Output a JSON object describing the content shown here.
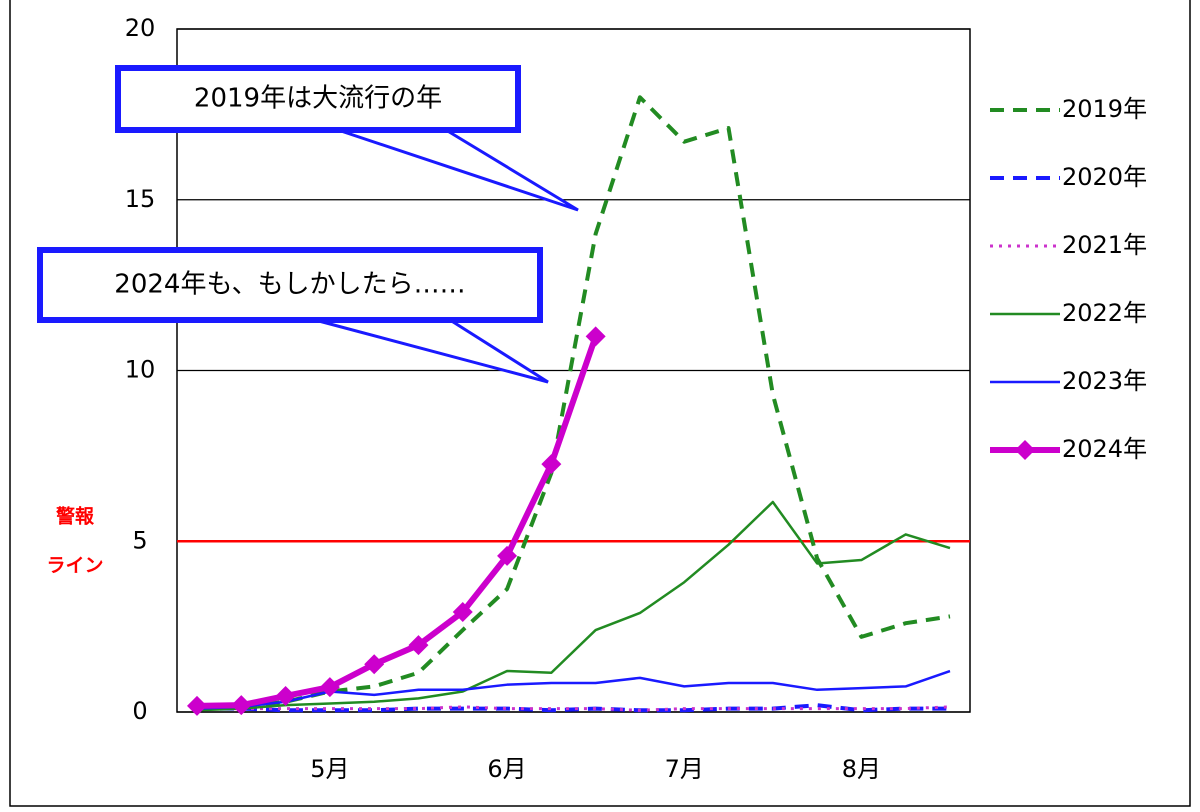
{
  "chart_data": {
    "type": "line",
    "categories": [
      null,
      null,
      null,
      "5月",
      null,
      null,
      null,
      "6月",
      null,
      null,
      null,
      "7月",
      null,
      null,
      null,
      "8月",
      null,
      null
    ],
    "series": [
      {
        "name": "2019年",
        "color": "#228b22",
        "dash": "dashed",
        "width": 4,
        "values": [
          0.1,
          0.15,
          0.3,
          0.6,
          0.75,
          1.15,
          2.4,
          3.6,
          7.0,
          14.0,
          18.0,
          16.7,
          17.1,
          9.3,
          4.5,
          2.2,
          2.6,
          2.8
        ]
      },
      {
        "name": "2020年",
        "color": "#1a1aff",
        "dash": "dashed",
        "width": 4,
        "values": [
          0.1,
          0.1,
          0.05,
          0.05,
          0.05,
          0.1,
          0.1,
          0.1,
          0.05,
          0.1,
          0.05,
          0.05,
          0.1,
          0.1,
          0.2,
          0.05,
          0.1,
          0.1
        ]
      },
      {
        "name": "2021年",
        "color": "#cc33cc",
        "dash": "dotted",
        "width": 3,
        "values": [
          0.1,
          0.1,
          0.1,
          0.1,
          0.1,
          0.1,
          0.15,
          0.1,
          0.1,
          0.1,
          0.05,
          0.1,
          0.1,
          0.1,
          0.1,
          0.1,
          0.1,
          0.15
        ]
      },
      {
        "name": "2022年",
        "color": "#228b22",
        "dash": "solid",
        "width": 2.5,
        "values": [
          0.05,
          0.1,
          0.2,
          0.25,
          0.3,
          0.4,
          0.6,
          1.2,
          1.15,
          2.4,
          2.9,
          3.8,
          4.9,
          6.15,
          4.35,
          4.45,
          5.2,
          4.8
        ]
      },
      {
        "name": "2023年",
        "color": "#1a1aff",
        "dash": "solid",
        "width": 2.5,
        "values": [
          0.1,
          0.15,
          0.3,
          0.6,
          0.5,
          0.65,
          0.65,
          0.8,
          0.85,
          0.85,
          1.0,
          0.75,
          0.85,
          0.85,
          0.65,
          0.7,
          0.75,
          1.2
        ]
      },
      {
        "name": "2024年",
        "color": "#cc00cc",
        "dash": "solid",
        "width": 6,
        "marker": "diamond",
        "values": [
          0.18,
          0.2,
          0.47,
          0.73,
          1.4,
          1.96,
          2.93,
          4.57,
          7.26,
          11.0,
          null,
          null,
          null,
          null,
          null,
          null,
          null,
          null
        ]
      }
    ],
    "ylim": [
      0,
      20
    ],
    "yticks": [
      0,
      5,
      10,
      15,
      20
    ],
    "grid": true,
    "legend": "right",
    "reference_line": {
      "value": 5,
      "color": "#ff0000",
      "label_lines": [
        "警報",
        "ライン"
      ]
    },
    "annotations": [
      "2019年は大流行の年",
      "2024年も、もしかしたら……"
    ]
  }
}
